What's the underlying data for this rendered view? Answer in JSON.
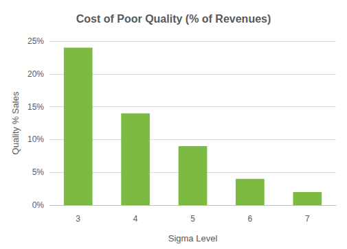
{
  "chart_data": {
    "type": "bar",
    "title": "Cost of Poor Quality (% of Revenues)",
    "x_label": "Sigma Level",
    "y_label": "Quality % Sales",
    "categories": [
      "3",
      "4",
      "5",
      "6",
      "7"
    ],
    "values": [
      24,
      14,
      9,
      4,
      2
    ],
    "color": "#7cbb42",
    "ylim": [
      0,
      25
    ],
    "yticks": [
      {
        "value": 0,
        "label": "0%"
      },
      {
        "value": 5,
        "label": "5%"
      },
      {
        "value": 10,
        "label": "10%"
      },
      {
        "value": 15,
        "label": "15%"
      },
      {
        "value": 20,
        "label": "20%"
      },
      {
        "value": 25,
        "label": "25%"
      }
    ],
    "grid": true
  }
}
